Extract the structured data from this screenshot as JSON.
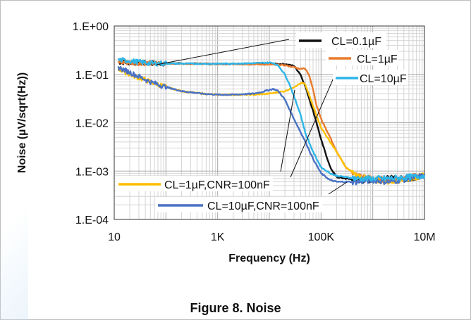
{
  "caption": "Figure 8. Noise",
  "chart_data": {
    "type": "line",
    "title": "",
    "xlabel": "Frequency (Hz)",
    "ylabel": "Noise (µV/sqrt(Hz))",
    "xscale": "log",
    "yscale": "log",
    "xlim": [
      10,
      10000000
    ],
    "ylim": [
      0.0001,
      1
    ],
    "x_ticks": [
      {
        "value": 10,
        "label": "10"
      },
      {
        "value": 1000,
        "label": "1K"
      },
      {
        "value": 100000,
        "label": "100K"
      },
      {
        "value": 10000000,
        "label": "10M"
      }
    ],
    "y_ticks": [
      {
        "value": 1,
        "label": "1.E+00"
      },
      {
        "value": 0.1,
        "label": "1.E-01"
      },
      {
        "value": 0.01,
        "label": "1.E-02"
      },
      {
        "value": 0.001,
        "label": "1.E-03"
      },
      {
        "value": 0.0001,
        "label": "1.E-04"
      }
    ],
    "grid": "major and minor",
    "series": [
      {
        "name": "CL=0.1µF",
        "color": "#111111",
        "x": [
          12,
          20,
          50,
          100,
          200,
          500,
          1000,
          2000,
          5000,
          10000,
          20000,
          30000,
          40000,
          50000,
          60000,
          80000,
          100000,
          150000,
          200000,
          300000,
          500000,
          1000000,
          2000000,
          5000000,
          10000000
        ],
        "y": [
          0.18,
          0.175,
          0.17,
          0.168,
          0.167,
          0.166,
          0.165,
          0.165,
          0.165,
          0.165,
          0.163,
          0.15,
          0.1,
          0.055,
          0.03,
          0.011,
          0.0045,
          0.0012,
          0.00075,
          0.0007,
          0.00065,
          0.00065,
          0.0007,
          0.0007,
          0.0008
        ]
      },
      {
        "name": "CL=1µF",
        "color": "#e97b2e",
        "x": [
          12,
          20,
          50,
          100,
          200,
          500,
          1000,
          2000,
          5000,
          10000,
          20000,
          30000,
          40000,
          45000,
          50000,
          60000,
          70000,
          80000,
          100000,
          150000,
          200000,
          300000,
          500000,
          1000000,
          2000000,
          5000000,
          10000000
        ],
        "y": [
          0.18,
          0.175,
          0.17,
          0.168,
          0.167,
          0.166,
          0.165,
          0.163,
          0.162,
          0.16,
          0.155,
          0.14,
          0.13,
          0.135,
          0.13,
          0.09,
          0.05,
          0.025,
          0.012,
          0.005,
          0.0025,
          0.0012,
          0.0008,
          0.0007,
          0.00065,
          0.00075,
          0.0008
        ]
      },
      {
        "name": "CL=10µF",
        "color": "#2cb5e8",
        "x": [
          12,
          20,
          50,
          100,
          200,
          500,
          1000,
          2000,
          5000,
          10000,
          12000,
          15000,
          20000,
          25000,
          30000,
          40000,
          50000,
          70000,
          100000,
          150000,
          200000,
          300000,
          500000,
          1000000,
          2000000,
          5000000,
          10000000
        ],
        "y": [
          0.2,
          0.19,
          0.17,
          0.168,
          0.167,
          0.166,
          0.166,
          0.167,
          0.17,
          0.175,
          0.172,
          0.15,
          0.1,
          0.06,
          0.035,
          0.015,
          0.006,
          0.0025,
          0.0012,
          0.0009,
          0.0008,
          0.00075,
          0.0007,
          0.0007,
          0.0007,
          0.00075,
          0.0008
        ]
      },
      {
        "name": "CL=1µF,CNR=100nF",
        "color": "#ffc000",
        "x": [
          12,
          20,
          50,
          100,
          200,
          500,
          1000,
          2000,
          5000,
          10000,
          20000,
          30000,
          40000,
          45000,
          50000,
          60000,
          80000,
          100000,
          150000,
          200000,
          300000,
          500000,
          1000000,
          2000000,
          5000000,
          10000000
        ],
        "y": [
          0.13,
          0.1,
          0.07,
          0.055,
          0.045,
          0.04,
          0.038,
          0.038,
          0.038,
          0.04,
          0.045,
          0.055,
          0.065,
          0.066,
          0.06,
          0.035,
          0.015,
          0.008,
          0.004,
          0.0025,
          0.0012,
          0.0008,
          0.00065,
          0.0006,
          0.0007,
          0.0008
        ]
      },
      {
        "name": "CL=10µF,CNR=100nF",
        "color": "#4a72c4",
        "x": [
          12,
          20,
          50,
          100,
          200,
          500,
          1000,
          2000,
          5000,
          7000,
          10000,
          12000,
          15000,
          20000,
          30000,
          50000,
          70000,
          100000,
          150000,
          200000,
          300000,
          500000,
          1000000,
          2000000,
          5000000,
          10000000
        ],
        "y": [
          0.14,
          0.11,
          0.07,
          0.055,
          0.045,
          0.04,
          0.038,
          0.038,
          0.04,
          0.043,
          0.048,
          0.05,
          0.045,
          0.03,
          0.012,
          0.004,
          0.0018,
          0.0009,
          0.00065,
          0.0006,
          0.0006,
          0.0006,
          0.00065,
          0.0006,
          0.0007,
          0.0008
        ]
      }
    ],
    "annotations": [
      "CL=0.1µF",
      "CL=1µF",
      "CL=10µF",
      "CL=1µF,CNR=100nF",
      "CL=10µF,CNR=100nF"
    ]
  }
}
